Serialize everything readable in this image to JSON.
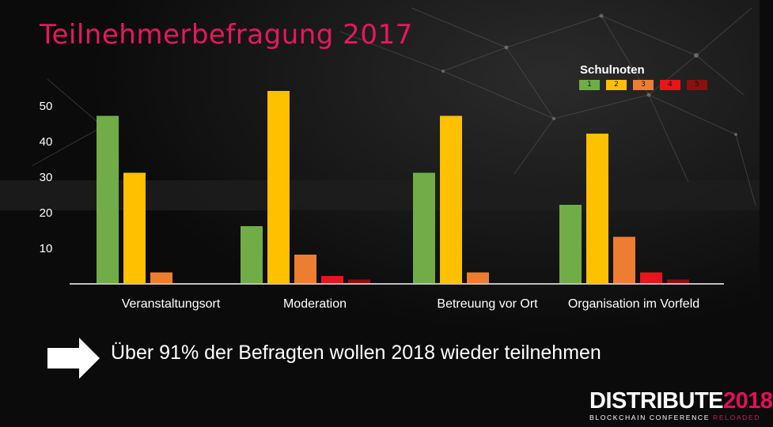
{
  "slide": {
    "title": "Teilnehmerbefragung 2017",
    "callout": "Über 91% der Befragten wollen 2018 wieder teilnehmen"
  },
  "legend": {
    "title": "Schulnoten",
    "items": [
      {
        "label": "1",
        "color": "#70ad47"
      },
      {
        "label": "2",
        "color": "#ffc000"
      },
      {
        "label": "3",
        "color": "#ed7d31"
      },
      {
        "label": "4",
        "color": "#e8151a"
      },
      {
        "label": "5",
        "color": "#8b1010"
      }
    ]
  },
  "logo": {
    "main_a": "DISTRIBUTE",
    "main_b": "2018",
    "sub_a": "BLOCKCHAIN CONFERENCE ",
    "sub_b": "RELOADED"
  },
  "colors": {
    "title": "#e8175d",
    "accent": "#e30f5a",
    "axis": "#bfbfbf",
    "text": "#ffffff"
  },
  "chart_data": {
    "type": "bar",
    "title": "",
    "xlabel": "",
    "ylabel": "",
    "ylim": [
      0,
      55
    ],
    "yticks": [
      10,
      20,
      30,
      40,
      50
    ],
    "categories": [
      "Veranstaltungsort",
      "Moderation",
      "Betreuung vor Ort",
      "Organisation im Vorfeld"
    ],
    "series": [
      {
        "name": "1",
        "values": [
          47,
          16,
          31,
          22
        ]
      },
      {
        "name": "2",
        "values": [
          31,
          54,
          47,
          42
        ]
      },
      {
        "name": "3",
        "values": [
          3,
          8,
          3,
          13
        ]
      },
      {
        "name": "4",
        "values": [
          0,
          2,
          0,
          3
        ]
      },
      {
        "name": "5",
        "values": [
          0,
          1,
          0,
          1
        ]
      }
    ]
  }
}
